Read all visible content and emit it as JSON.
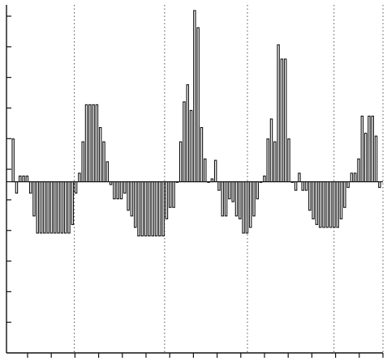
{
  "chart_data": {
    "type": "bar",
    "title": "",
    "xlabel": "",
    "ylabel": "",
    "ylim": [
      -6,
      6.2
    ],
    "grid": {
      "x_dotted_lines": true,
      "y_lines": false
    },
    "bar_style": "open outlined bars, black stroke on white",
    "colors": {
      "bar_stroke": "#111111",
      "bar_fill": "#ffffff",
      "axis": "#111111",
      "grid": "#555555"
    },
    "values": [
      1.5,
      -0.4,
      0.2,
      0.2,
      0.2,
      -0.4,
      -1.2,
      -1.8,
      -1.8,
      -1.8,
      -1.8,
      -1.8,
      -1.8,
      -1.8,
      -1.8,
      -1.8,
      -1.8,
      -1.5,
      -0.4,
      0.3,
      1.4,
      2.7,
      2.7,
      2.7,
      2.7,
      1.9,
      1.4,
      0.7,
      -0.1,
      -0.6,
      -0.6,
      -0.6,
      -0.4,
      -1.0,
      -1.2,
      -1.6,
      -1.9,
      -1.9,
      -1.9,
      -1.9,
      -1.9,
      -1.9,
      -1.9,
      -1.9,
      -1.3,
      -0.9,
      -0.9,
      0.0,
      1.4,
      2.8,
      3.4,
      2.5,
      6.0,
      5.4,
      1.9,
      0.8,
      0.0,
      0.1,
      0.75,
      -0.3,
      -1.2,
      -1.2,
      -0.6,
      -0.7,
      -1.2,
      -1.3,
      -1.8,
      -1.8,
      -1.6,
      -1.2,
      -0.6,
      0.0,
      0.2,
      1.5,
      2.2,
      1.4,
      4.8,
      4.3,
      4.3,
      1.5,
      0.0,
      -0.3,
      0.3,
      -0.3,
      -0.3,
      -1.0,
      -1.3,
      -1.5,
      -1.6,
      -1.6,
      -1.6,
      -1.6,
      -1.6,
      -1.6,
      -1.3,
      -0.9,
      -0.2,
      0.3,
      0.3,
      0.8,
      2.3,
      1.7,
      2.3,
      2.3,
      1.6,
      -0.2
    ],
    "x_tick_count": 15,
    "y_tick_count": 11,
    "vertical_dotted_line_positions": [
      0.18,
      0.42,
      0.64,
      0.87,
      1.0
    ]
  }
}
